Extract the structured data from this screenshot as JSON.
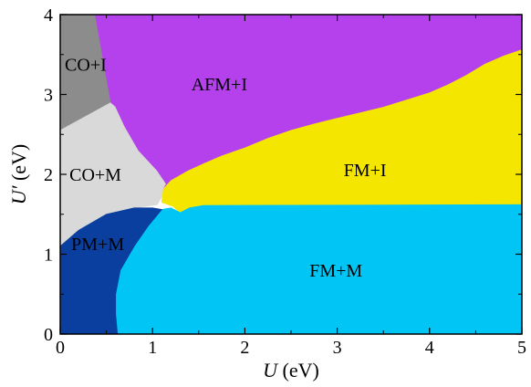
{
  "chart_data": {
    "type": "area",
    "title": "",
    "xlabel_var": "U",
    "xlabel_unit": " (eV)",
    "ylabel_var": "U′",
    "ylabel_unit": " (eV)",
    "xlim": [
      0,
      5
    ],
    "ylim": [
      0,
      4
    ],
    "x_ticks": [
      "0",
      "1",
      "2",
      "3",
      "4",
      "5"
    ],
    "y_ticks": [
      "0",
      "1",
      "2",
      "3",
      "4"
    ],
    "grid": false,
    "regions": [
      {
        "name": "CO+I",
        "color": "#8c8c8c",
        "label_at": [
          0.05,
          3.3
        ],
        "boundary": [
          [
            0,
            4
          ],
          [
            0.38,
            4
          ],
          [
            0.55,
            2.9
          ],
          [
            0,
            2.55
          ]
        ]
      },
      {
        "name": "CO+M",
        "color": "#d9d9d9",
        "label_at": [
          0.1,
          1.92
        ],
        "boundary": [
          [
            0,
            2.55
          ],
          [
            0.55,
            2.9
          ],
          [
            0.6,
            2.85
          ],
          [
            0.7,
            2.6
          ],
          [
            0.85,
            2.3
          ],
          [
            1.05,
            2.05
          ],
          [
            1.15,
            1.9
          ],
          [
            1.1,
            1.72
          ],
          [
            1.05,
            1.62
          ],
          [
            0.8,
            1.58
          ],
          [
            0.5,
            1.5
          ],
          [
            0.2,
            1.3
          ],
          [
            0,
            1.1
          ]
        ]
      },
      {
        "name": "AFM+I",
        "color": "#b541ed",
        "label_at": [
          1.42,
          3.05
        ],
        "boundary": [
          [
            0.38,
            4
          ],
          [
            5,
            4
          ],
          [
            5,
            3.56
          ],
          [
            4.8,
            3.48
          ],
          [
            4.6,
            3.38
          ],
          [
            4.4,
            3.24
          ],
          [
            4.2,
            3.12
          ],
          [
            4.0,
            3.02
          ],
          [
            3.75,
            2.93
          ],
          [
            3.5,
            2.84
          ],
          [
            3.25,
            2.77
          ],
          [
            3.0,
            2.7
          ],
          [
            2.75,
            2.63
          ],
          [
            2.5,
            2.55
          ],
          [
            2.25,
            2.45
          ],
          [
            2.0,
            2.33
          ],
          [
            1.75,
            2.23
          ],
          [
            1.55,
            2.13
          ],
          [
            1.38,
            2.04
          ],
          [
            1.2,
            1.92
          ],
          [
            1.12,
            1.82
          ],
          [
            1.15,
            1.88
          ],
          [
            1.05,
            2.05
          ],
          [
            0.85,
            2.3
          ],
          [
            0.7,
            2.6
          ],
          [
            0.6,
            2.85
          ],
          [
            0.55,
            2.9
          ]
        ]
      },
      {
        "name": "FM+I",
        "color": "#f5e600",
        "label_at": [
          3.07,
          1.98
        ],
        "boundary": [
          [
            1.12,
            1.82
          ],
          [
            1.2,
            1.92
          ],
          [
            1.38,
            2.04
          ],
          [
            1.55,
            2.13
          ],
          [
            1.75,
            2.23
          ],
          [
            2.0,
            2.33
          ],
          [
            2.25,
            2.45
          ],
          [
            2.5,
            2.55
          ],
          [
            2.75,
            2.63
          ],
          [
            3.0,
            2.7
          ],
          [
            3.25,
            2.77
          ],
          [
            3.5,
            2.84
          ],
          [
            3.75,
            2.93
          ],
          [
            4.0,
            3.02
          ],
          [
            4.2,
            3.12
          ],
          [
            4.4,
            3.24
          ],
          [
            4.6,
            3.38
          ],
          [
            4.8,
            3.48
          ],
          [
            5,
            3.56
          ],
          [
            5,
            1.62
          ],
          [
            1.55,
            1.61
          ],
          [
            1.4,
            1.58
          ],
          [
            1.3,
            1.52
          ],
          [
            1.22,
            1.6
          ],
          [
            1.1,
            1.65
          ]
        ]
      },
      {
        "name": "FM+M",
        "color": "#00c5f5",
        "label_at": [
          2.7,
          0.72
        ],
        "boundary": [
          [
            0.62,
            0
          ],
          [
            5,
            0
          ],
          [
            5,
            1.62
          ],
          [
            1.55,
            1.61
          ],
          [
            1.4,
            1.58
          ],
          [
            1.3,
            1.52
          ],
          [
            1.2,
            1.58
          ],
          [
            1.1,
            1.56
          ],
          [
            0.95,
            1.35
          ],
          [
            0.8,
            1.1
          ],
          [
            0.65,
            0.8
          ],
          [
            0.6,
            0.5
          ],
          [
            0.6,
            0.25
          ]
        ]
      },
      {
        "name": "PM+M",
        "color": "#0a3fa0",
        "label_at": [
          0.12,
          1.05
        ],
        "boundary": [
          [
            0,
            0
          ],
          [
            0.62,
            0
          ],
          [
            0.6,
            0.25
          ],
          [
            0.6,
            0.5
          ],
          [
            0.65,
            0.8
          ],
          [
            0.8,
            1.1
          ],
          [
            0.95,
            1.35
          ],
          [
            1.1,
            1.56
          ],
          [
            1.0,
            1.58
          ],
          [
            0.8,
            1.58
          ],
          [
            0.5,
            1.5
          ],
          [
            0.2,
            1.3
          ],
          [
            0,
            1.1
          ]
        ]
      }
    ]
  }
}
